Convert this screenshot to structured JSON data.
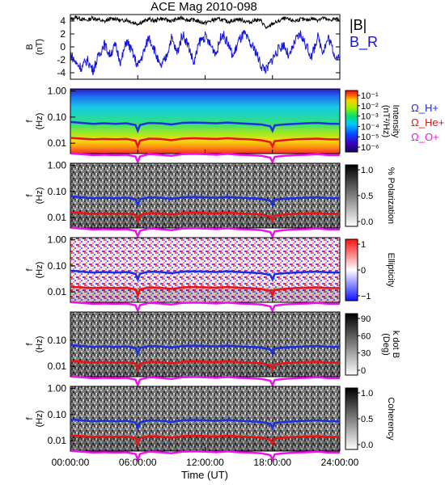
{
  "title": "ACE Mag 2010-098",
  "colors": {
    "field_magnitude": "#000000",
    "field_radial": "#1515e0",
    "gyro_h": "#1a2fe6",
    "gyro_he": "#ee1111",
    "gyro_o": "#ee11ee"
  },
  "chart_data": [
    {
      "type": "line",
      "panel": "magnetic-field",
      "ylabel": "B\n(nT)",
      "ylim": [
        -5,
        5
      ],
      "yticks": [
        4,
        2,
        0,
        -2,
        -4
      ],
      "xlim": [
        0,
        24
      ],
      "series": [
        {
          "name": "|B|",
          "color": "#000000",
          "x": [
            0,
            0.5,
            1,
            1.5,
            2,
            2.5,
            3,
            3.5,
            4,
            4.5,
            5,
            5.5,
            6,
            6.5,
            7,
            7.5,
            8,
            8.5,
            9,
            9.5,
            10,
            10.5,
            11,
            11.5,
            12,
            12.5,
            13,
            13.5,
            14,
            14.5,
            15,
            15.5,
            16,
            16.5,
            17,
            17.5,
            18,
            18.5,
            19,
            19.5,
            20,
            20.5,
            21,
            21.5,
            22,
            22.5,
            23,
            23.5,
            24
          ],
          "values": [
            4.2,
            4.6,
            4.3,
            4.1,
            4.5,
            4.2,
            3.9,
            4.3,
            4.4,
            4.0,
            4.2,
            3.8,
            3.6,
            3.9,
            4.3,
            4.0,
            4.4,
            4.2,
            4.0,
            4.3,
            4.5,
            4.1,
            4.2,
            3.9,
            3.7,
            4.0,
            4.3,
            4.2,
            3.9,
            4.1,
            4.3,
            4.0,
            3.8,
            4.2,
            4.0,
            2.8,
            3.6,
            3.9,
            4.4,
            4.2,
            4.0,
            4.3,
            4.1,
            4.4,
            4.2,
            4.5,
            4.1,
            4.3,
            4.2
          ]
        },
        {
          "name": "B_R",
          "color": "#1515e0",
          "x": [
            0,
            0.5,
            1,
            1.5,
            2,
            2.5,
            3,
            3.5,
            4,
            4.5,
            5,
            5.5,
            6,
            6.5,
            7,
            7.5,
            8,
            8.5,
            9,
            9.5,
            10,
            10.5,
            11,
            11.5,
            12,
            12.5,
            13,
            13.5,
            14,
            14.5,
            15,
            15.5,
            16,
            16.5,
            17,
            17.5,
            18,
            18.5,
            19,
            19.5,
            20,
            20.5,
            21,
            21.5,
            22,
            22.5,
            23,
            23.5,
            24
          ],
          "values": [
            -1.0,
            -2.5,
            -3.2,
            -2.0,
            -3.6,
            -1.5,
            0.5,
            -1.2,
            0.2,
            -2.4,
            1.0,
            -0.8,
            -3.0,
            -1.0,
            1.6,
            -0.5,
            -3.2,
            -1.8,
            1.4,
            -1.0,
            2.0,
            0.3,
            -2.6,
            0.8,
            1.6,
            0.2,
            -1.0,
            2.2,
            0.6,
            -1.5,
            1.0,
            2.0,
            0.5,
            -0.6,
            -3.0,
            -3.5,
            -1.8,
            -0.5,
            0.4,
            -1.6,
            0.8,
            2.0,
            0.2,
            -1.6,
            1.6,
            -0.6,
            1.4,
            -1.0,
            -2.2
          ]
        }
      ]
    },
    {
      "type": "heatmap",
      "panel": "intensity",
      "ylabel": "f\n(Hz)",
      "yscale": "log",
      "ylim": [
        0.004,
        1.2
      ],
      "yticks": [
        "1.00",
        "0.10",
        "0.01"
      ],
      "colorbar": {
        "label": "Intensity\n(nT²/Hz)",
        "scale": "log",
        "ticks": [
          "10⁻¹",
          "10⁻²",
          "10⁻³",
          "10⁻⁴",
          "10⁻⁵",
          "10⁻⁶"
        ],
        "palette": "rainbow"
      }
    },
    {
      "type": "heatmap",
      "panel": "polarization",
      "ylabel": "f\n(Hz)",
      "yscale": "log",
      "yticks": [
        "1.00",
        "0.10",
        "0.01"
      ],
      "colorbar": {
        "label": "% Polarization",
        "ticks": [
          "1.0",
          "0.5",
          "0.0"
        ],
        "palette": "greyscale"
      }
    },
    {
      "type": "heatmap",
      "panel": "ellipticity",
      "ylabel": "f\n(Hz)",
      "yscale": "log",
      "yticks": [
        "1.00",
        "0.10",
        "0.01"
      ],
      "colorbar": {
        "label": "Ellipticity",
        "ticks": [
          "1",
          "0",
          "−1"
        ],
        "palette": "blue-white-red"
      }
    },
    {
      "type": "heatmap",
      "panel": "k-dot-b",
      "ylabel": "f\n(Hz)",
      "yscale": "log",
      "yticks": [
        "0.10",
        "0.01"
      ],
      "colorbar": {
        "label": "k dot B\n(Deg)",
        "ticks": [
          "90",
          "60",
          "30",
          "0"
        ],
        "palette": "greyscale"
      }
    },
    {
      "type": "heatmap",
      "panel": "coherency",
      "ylabel": "f\n(Hz)",
      "yscale": "log",
      "yticks": [
        "1.00",
        "0.10",
        "0.01"
      ],
      "colorbar": {
        "label": "Coherency",
        "ticks": [
          "1.0",
          "0.5",
          "0.0"
        ],
        "palette": "greyscale"
      }
    }
  ],
  "gyro_lines": {
    "x": [
      0,
      1,
      2,
      3,
      4,
      5,
      5.8,
      6,
      6.2,
      7,
      8,
      9,
      10,
      11,
      12,
      13,
      14,
      15,
      16,
      17,
      17.8,
      18,
      18.2,
      19,
      20,
      21,
      22,
      23,
      24
    ],
    "h_plus": [
      0.065,
      0.06,
      0.055,
      0.058,
      0.055,
      0.058,
      0.05,
      0.03,
      0.05,
      0.06,
      0.058,
      0.052,
      0.06,
      0.062,
      0.06,
      0.058,
      0.062,
      0.058,
      0.055,
      0.052,
      0.045,
      0.03,
      0.048,
      0.052,
      0.055,
      0.058,
      0.06,
      0.056,
      0.055
    ],
    "he_plus": [
      0.016,
      0.015,
      0.014,
      0.0145,
      0.014,
      0.0145,
      0.0125,
      0.0075,
      0.0125,
      0.015,
      0.0145,
      0.013,
      0.015,
      0.0155,
      0.015,
      0.0145,
      0.0155,
      0.0145,
      0.014,
      0.013,
      0.011,
      0.0075,
      0.012,
      0.013,
      0.014,
      0.0145,
      0.015,
      0.014,
      0.014
    ],
    "o_plus": [
      0.0041,
      0.0038,
      0.0035,
      0.0036,
      0.0035,
      0.0036,
      0.0031,
      0.0019,
      0.0031,
      0.0038,
      0.0036,
      0.0033,
      0.0038,
      0.0039,
      0.0038,
      0.0036,
      0.0039,
      0.0036,
      0.0035,
      0.0033,
      0.0028,
      0.0019,
      0.003,
      0.0033,
      0.0035,
      0.0036,
      0.0038,
      0.0035,
      0.0035
    ]
  },
  "legend": {
    "mag": [
      "|B|",
      "B_R"
    ],
    "gyro": [
      "Ω_H+",
      "Ω_He+",
      "Ω_O+"
    ]
  },
  "x_axis": {
    "label": "Time (UT)",
    "ticks": [
      "00:00:00",
      "06:00:00",
      "12:00:00",
      "18:00:00",
      "24:00:00"
    ]
  }
}
